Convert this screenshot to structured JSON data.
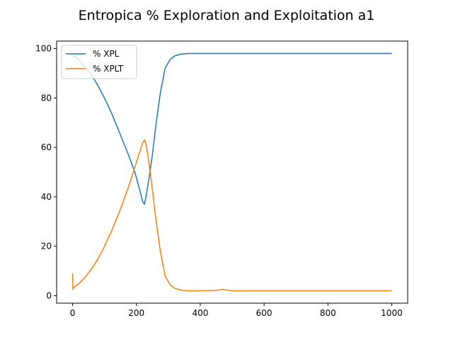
{
  "chart_data": {
    "type": "line",
    "title": "Entropica % Exploration and Exploitation a1",
    "xlabel": "",
    "ylabel": "",
    "xlim": [
      -50,
      1050
    ],
    "ylim": [
      -3,
      103
    ],
    "xticks": [
      0,
      200,
      400,
      600,
      800,
      1000
    ],
    "yticks": [
      0,
      20,
      40,
      60,
      80,
      100
    ],
    "grid": false,
    "legend_position": "top-left",
    "series": [
      {
        "name": "% XPL",
        "color": "#1f77b4",
        "x": [
          0,
          5,
          15,
          30,
          50,
          75,
          100,
          125,
          150,
          175,
          195,
          210,
          220,
          225,
          230,
          240,
          250,
          260,
          275,
          290,
          305,
          320,
          340,
          360,
          400,
          450,
          500,
          600,
          700,
          800,
          900,
          1000
        ],
        "y": [
          97,
          97,
          96,
          94,
          91,
          86,
          80,
          73,
          65,
          57,
          50,
          43,
          38,
          37,
          40,
          48,
          57,
          68,
          82,
          92,
          95.5,
          97,
          97.8,
          98,
          98,
          98,
          98,
          98,
          98,
          98,
          98,
          98
        ]
      },
      {
        "name": "% XPLT",
        "color": "#ff7f0e",
        "x": [
          0,
          1,
          2,
          5,
          10,
          20,
          40,
          60,
          80,
          100,
          125,
          150,
          175,
          195,
          210,
          220,
          226,
          232,
          240,
          250,
          260,
          275,
          290,
          305,
          320,
          340,
          360,
          400,
          450,
          470,
          500,
          600,
          700,
          800,
          900,
          1000
        ],
        "y": [
          9,
          2.5,
          3,
          3.5,
          4,
          5,
          7.5,
          11,
          15,
          20,
          27,
          35,
          44,
          52,
          58,
          62,
          63,
          60,
          53,
          43,
          32,
          18,
          8,
          4.5,
          3,
          2.3,
          2,
          2,
          2.2,
          2.5,
          2,
          2,
          2,
          2,
          2,
          2
        ]
      }
    ]
  }
}
